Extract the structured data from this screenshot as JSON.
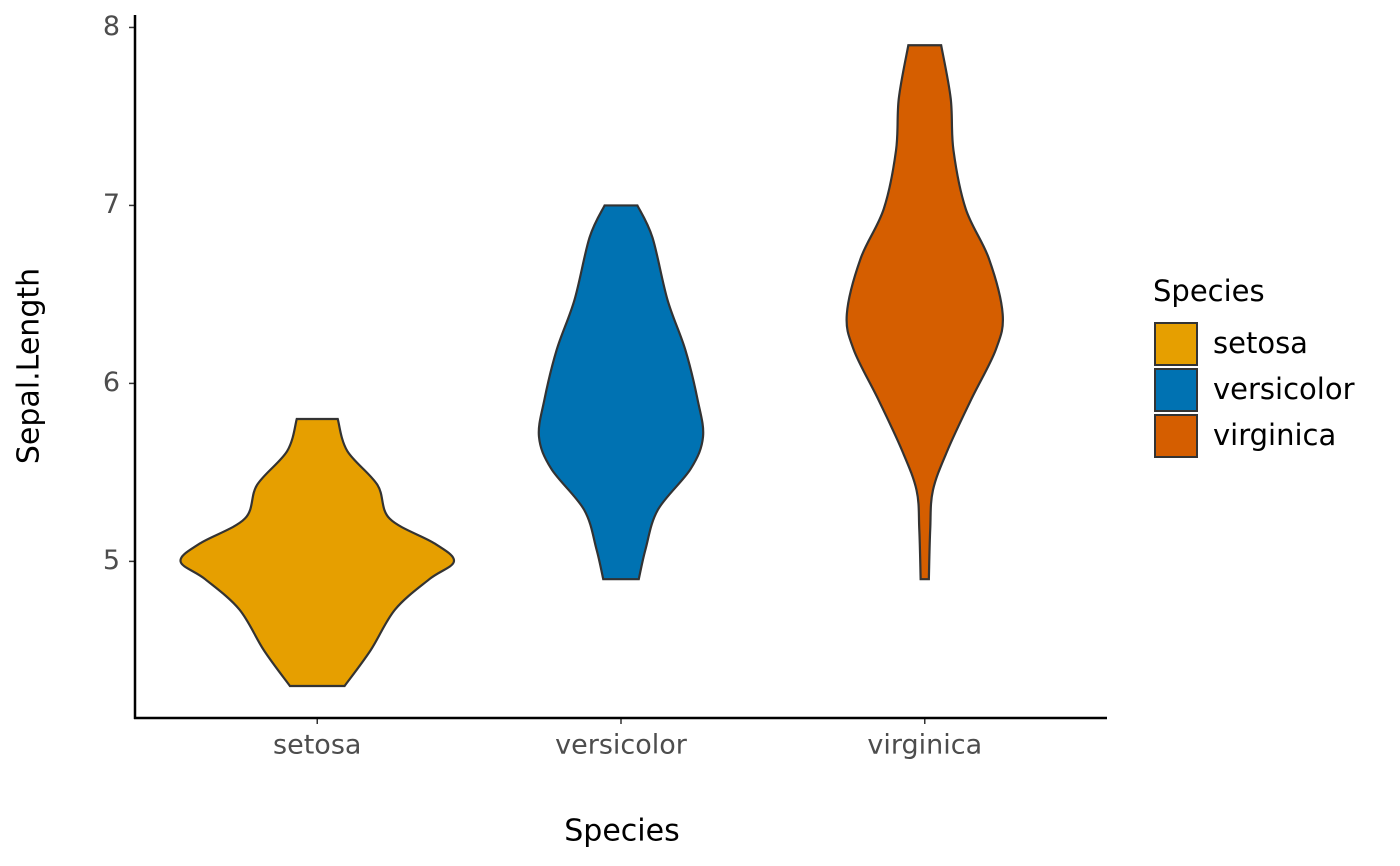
{
  "chart_data": {
    "type": "violin",
    "x_label": "Species",
    "y_label": "Sepal.Length",
    "categories": [
      "setosa",
      "versicolor",
      "virginica"
    ],
    "ylim": [
      4.12,
      8.07
    ],
    "yticks": [
      5,
      6,
      7,
      8
    ],
    "legend_title": "Species",
    "legend_position": "right",
    "series": [
      {
        "name": "setosa",
        "color": "#E69F00",
        "y": [
          5.8,
          5.62,
          5.43,
          5.24,
          5.1,
          5.0,
          4.9,
          4.73,
          4.5,
          4.3
        ],
        "density": [
          0.15,
          0.22,
          0.44,
          0.53,
          0.86,
          1.0,
          0.82,
          0.57,
          0.39,
          0.2
        ]
      },
      {
        "name": "versicolor",
        "color": "#0072B2",
        "y": [
          7.0,
          6.82,
          6.47,
          6.19,
          5.91,
          5.7,
          5.52,
          5.29,
          5.07,
          4.9
        ],
        "density": [
          0.12,
          0.23,
          0.34,
          0.47,
          0.56,
          0.6,
          0.51,
          0.27,
          0.18,
          0.13
        ]
      },
      {
        "name": "virginica",
        "color": "#D55E00",
        "y": [
          7.9,
          7.6,
          7.31,
          6.98,
          6.7,
          6.39,
          6.19,
          5.91,
          5.63,
          5.4,
          5.18,
          4.9
        ],
        "density": [
          0.12,
          0.19,
          0.21,
          0.3,
          0.47,
          0.57,
          0.52,
          0.34,
          0.17,
          0.06,
          0.04,
          0.03
        ]
      }
    ]
  }
}
